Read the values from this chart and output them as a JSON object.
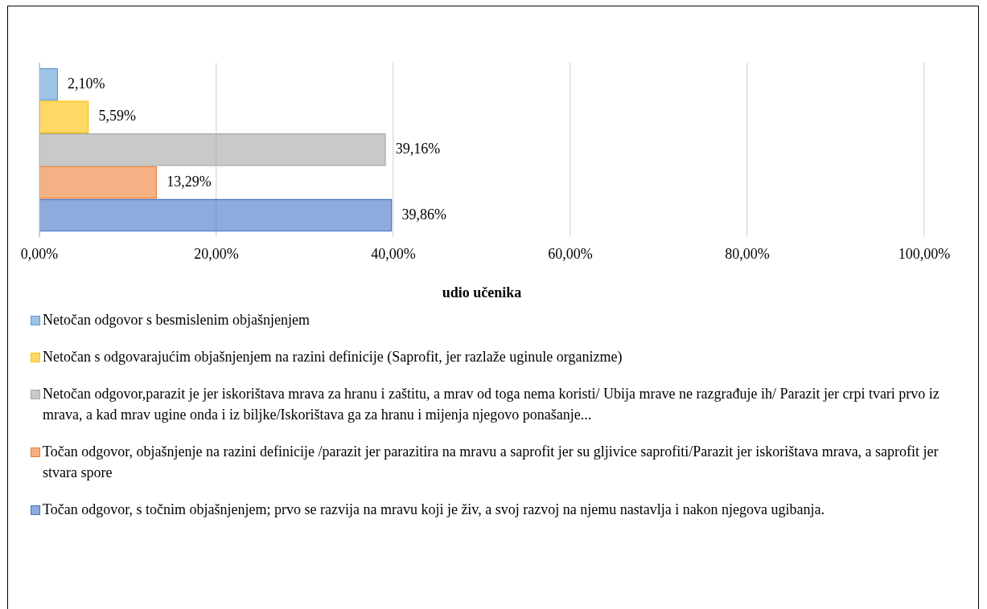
{
  "chart_data": {
    "type": "bar",
    "orientation": "horizontal",
    "xlabel": "udio učenika",
    "categories": [
      null
    ],
    "xlim": [
      0,
      100
    ],
    "xticks": [
      {
        "value": 0,
        "label": "0,00%"
      },
      {
        "value": 20,
        "label": "20,00%"
      },
      {
        "value": 40,
        "label": "40,00%"
      },
      {
        "value": 60,
        "label": "60,00%"
      },
      {
        "value": 80,
        "label": "80,00%"
      },
      {
        "value": 100,
        "label": "100,00%"
      }
    ],
    "grid": "x",
    "legend": "bottom",
    "tick_labels": "x",
    "series": [
      {
        "name": "Netočan odgovor s besmislenim objašnjenjem",
        "color": "#5b9bd5",
        "values": [
          2.1
        ],
        "value_labels": [
          "2,10%"
        ]
      },
      {
        "name": "Netočan s odgovarajućim objašnjenjem na razini definicije (Saprofit, jer razlaže uginule organizme)",
        "color": "#ffc000",
        "values": [
          5.59
        ],
        "value_labels": [
          "5,59%"
        ]
      },
      {
        "name": "Netočan odgovor,parazit je jer iskorištava mrava za hranu i zaštitu, a mrav od toga nema koristi/ Ubija mrave ne razgrađuje ih/ Parazit jer crpi tvari prvo iz mrava, a kad mrav ugine onda i iz biljke/Iskorištava ga za hranu i mijenja njegovo ponašanje...",
        "color": "#a5a5a5",
        "values": [
          39.16
        ],
        "value_labels": [
          "39,16%"
        ]
      },
      {
        "name": "Točan odgovor, objašnjenje na razini definicije /parazit jer parazitira na mravu a saprofit jer su gljivice saprofiti/Parazit jer iskorištava mrava, a saprofit jer stvara spore",
        "color": "#ed7d31",
        "values": [
          13.29
        ],
        "value_labels": [
          "13,29%"
        ]
      },
      {
        "name": "Točan odgovor, s točnim objašnjenjem; prvo se razvija na mravu koji je živ, a svoj razvoj na njemu nastavlja i nakon njegova ugibanja.",
        "color": "#4472c4",
        "values": [
          39.86
        ],
        "value_labels": [
          "39,86%"
        ]
      }
    ]
  }
}
